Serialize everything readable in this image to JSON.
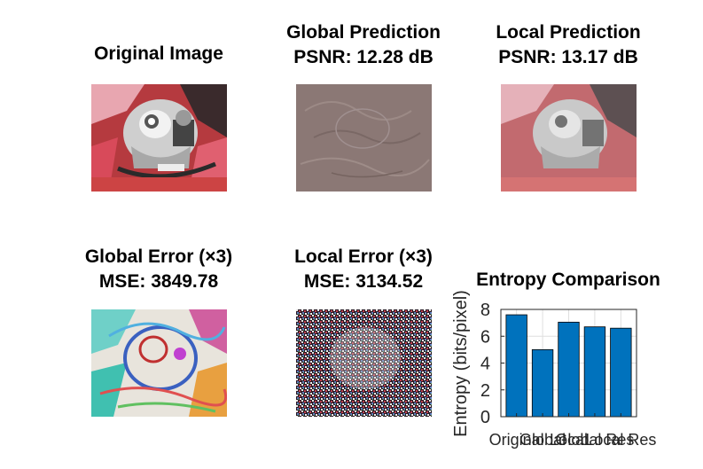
{
  "panels": {
    "original": {
      "title": "Original Image"
    },
    "global_pred": {
      "title1": "Global Prediction",
      "title2": "PSNR: 12.28 dB"
    },
    "local_pred": {
      "title1": "Local Prediction",
      "title2": "PSNR: 13.17 dB"
    },
    "global_err": {
      "title1": "Global Error (×3)",
      "title2": "MSE: 3849.78"
    },
    "local_err": {
      "title1": "Local Error (×3)",
      "title2": "MSE: 3134.52"
    }
  },
  "colors": {
    "bar": "#0072BD",
    "axis": "#262626",
    "grid": "#dfdfdf"
  },
  "chart_data": {
    "type": "bar",
    "title": "Entropy Comparison",
    "xlabel": "",
    "ylabel": "Entropy (bits/pixel)",
    "categories": [
      "Original",
      "Global",
      "Local",
      "Global Res",
      "Local Res"
    ],
    "values": [
      7.6,
      5.0,
      7.05,
      6.7,
      6.6
    ],
    "ylim": [
      0,
      8
    ],
    "yticks": [
      "0",
      "2",
      "4",
      "6",
      "8"
    ],
    "grid": true
  }
}
